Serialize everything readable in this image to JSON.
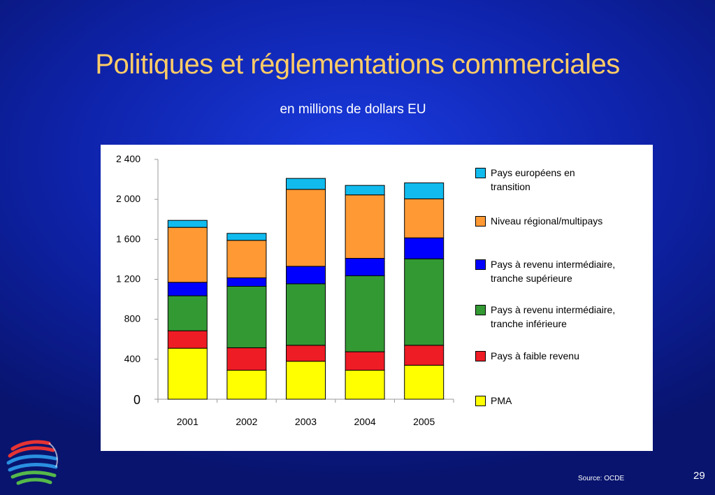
{
  "slide": {
    "title": "Politiques et réglementations commerciales",
    "subtitle": "en millions de dollars EU",
    "source": "Source:  OCDE",
    "page_number": "29"
  },
  "colors": {
    "PMA": "#ffff00",
    "Pays à faible revenu": "#ee1c25",
    "Pays à revenu intermédiaire, tranche inférieure": "#339933",
    "Pays à revenu intermédiaire, tranche supérieure": "#0000ff",
    "Niveau régional/multipays": "#ff9933",
    "Pays européens en transition": "#11bbee"
  },
  "legend": [
    {
      "name": "Pays européens en transition",
      "display": "Pays européens en\ntransition",
      "color": "#11bbee"
    },
    {
      "name": "Niveau régional/multipays",
      "display": "Niveau régional/multipays",
      "color": "#ff9933"
    },
    {
      "name": "Pays à revenu intermédiaire, tranche supérieure",
      "display": "Pays à revenu intermédiaire,\ntranche supérieure",
      "color": "#0000ff"
    },
    {
      "name": "Pays à revenu intermédiaire, tranche inférieure",
      "display": "Pays à revenu intermédiaire,\ntranche inférieure",
      "color": "#339933"
    },
    {
      "name": "Pays à faible revenu",
      "display": "Pays à faible revenu",
      "color": "#ee1c25"
    },
    {
      "name": "PMA",
      "display": "PMA",
      "color": "#ffff00"
    }
  ],
  "chart_data": {
    "type": "bar",
    "stacked": true,
    "title": "Politiques et réglementations commerciales",
    "subtitle": "en millions de dollars EU",
    "categories": [
      "2001",
      "2002",
      "2003",
      "2004",
      "2005"
    ],
    "ylim": [
      0,
      2400
    ],
    "yticks": [
      0,
      400,
      800,
      1200,
      1600,
      2000,
      2400
    ],
    "ytick_labels": [
      "0",
      "400",
      "800",
      "1 200",
      "1 600",
      "2 000",
      "2 400"
    ],
    "grid": false,
    "legend_position": "right",
    "series": [
      {
        "name": "PMA",
        "values": [
          510,
          290,
          380,
          290,
          340
        ]
      },
      {
        "name": "Pays à faible revenu",
        "values": [
          175,
          225,
          160,
          185,
          200
        ]
      },
      {
        "name": "Pays à revenu intermédiaire, tranche inférieure",
        "values": [
          350,
          615,
          615,
          760,
          865
        ]
      },
      {
        "name": "Pays à revenu intermédiaire, tranche supérieure",
        "values": [
          135,
          85,
          175,
          175,
          210
        ]
      },
      {
        "name": "Niveau régional/multipays",
        "values": [
          550,
          375,
          770,
          635,
          390
        ]
      },
      {
        "name": "Pays européens en transition",
        "values": [
          70,
          70,
          110,
          95,
          160
        ]
      }
    ]
  }
}
